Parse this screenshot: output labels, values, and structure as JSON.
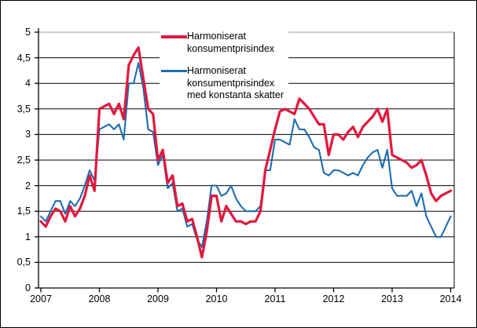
{
  "chart_data": {
    "type": "line",
    "title": "",
    "x_unit": "month",
    "x_start": "2007-01",
    "x_end": "2014-01",
    "points_count": 85,
    "x_tick_labels": [
      "2007",
      "2008",
      "2009",
      "2010",
      "2011",
      "2012",
      "2013",
      "2014"
    ],
    "y_ticks": [
      0,
      0.5,
      1,
      1.5,
      2,
      2.5,
      3,
      3.5,
      4,
      4.5,
      5
    ],
    "y_tick_labels": [
      "0",
      "0,5",
      "1",
      "1,5",
      "2",
      "2,5",
      "3",
      "3,5",
      "4",
      "4,5",
      "5"
    ],
    "ylim": [
      0,
      5
    ],
    "grid": "horizontal-black-solid, top-gridline-gray",
    "legend_position": "top-center-inside",
    "axis_color": "#000000",
    "top_gridline_color": "#9a9a9a",
    "series": [
      {
        "name": "Harmoniserat konsumentprisindex",
        "label_lines": [
          "Harmoniserat",
          "konsumentprisindex",
          ""
        ],
        "color": "#e2173d",
        "line_width": 3.2,
        "values": [
          1.3,
          1.2,
          1.4,
          1.55,
          1.5,
          1.3,
          1.6,
          1.4,
          1.55,
          1.8,
          2.2,
          1.9,
          3.5,
          3.55,
          3.6,
          3.4,
          3.6,
          3.3,
          4.35,
          4.55,
          4.7,
          4.1,
          3.5,
          3.4,
          2.5,
          2.7,
          2.05,
          2.2,
          1.6,
          1.65,
          1.3,
          1.35,
          1.0,
          0.6,
          1.1,
          1.8,
          1.8,
          1.3,
          1.6,
          1.45,
          1.3,
          1.3,
          1.25,
          1.3,
          1.3,
          1.5,
          2.3,
          2.7,
          3.1,
          3.45,
          3.5,
          3.45,
          3.4,
          3.7,
          3.6,
          3.5,
          3.35,
          3.2,
          3.2,
          2.6,
          3.0,
          3.0,
          2.9,
          3.05,
          3.15,
          2.95,
          3.15,
          3.25,
          3.35,
          3.5,
          3.25,
          3.5,
          2.6,
          2.55,
          2.5,
          2.45,
          2.35,
          2.4,
          2.5,
          2.2,
          1.85,
          1.7,
          1.8,
          1.85,
          1.9
        ]
      },
      {
        "name": "Harmoniserat konsumentprisindex med konstanta skatter",
        "label_lines": [
          "Harmoniserat",
          "konsumentprisindex",
          "med konstanta skatter"
        ],
        "color": "#1e6cb0",
        "line_width": 2.1,
        "values": [
          1.4,
          1.3,
          1.5,
          1.7,
          1.7,
          1.45,
          1.7,
          1.6,
          1.75,
          2.0,
          2.3,
          2.1,
          3.1,
          3.15,
          3.2,
          3.1,
          3.2,
          2.9,
          4.0,
          4.0,
          4.4,
          3.9,
          3.1,
          3.05,
          2.4,
          2.6,
          1.95,
          2.05,
          1.5,
          1.55,
          1.2,
          1.25,
          0.95,
          0.8,
          1.3,
          2.0,
          2.0,
          1.8,
          1.85,
          2.0,
          1.75,
          1.6,
          1.5,
          1.5,
          1.5,
          1.6,
          2.3,
          2.3,
          2.9,
          2.9,
          2.85,
          2.8,
          3.3,
          3.1,
          3.1,
          2.95,
          2.75,
          2.7,
          2.25,
          2.2,
          2.3,
          2.3,
          2.25,
          2.2,
          2.25,
          2.2,
          2.4,
          2.55,
          2.65,
          2.7,
          2.35,
          2.7,
          1.95,
          1.8,
          1.8,
          1.8,
          1.9,
          1.6,
          1.85,
          1.4,
          1.2,
          1.0,
          1.0,
          1.2,
          1.4
        ]
      }
    ]
  }
}
